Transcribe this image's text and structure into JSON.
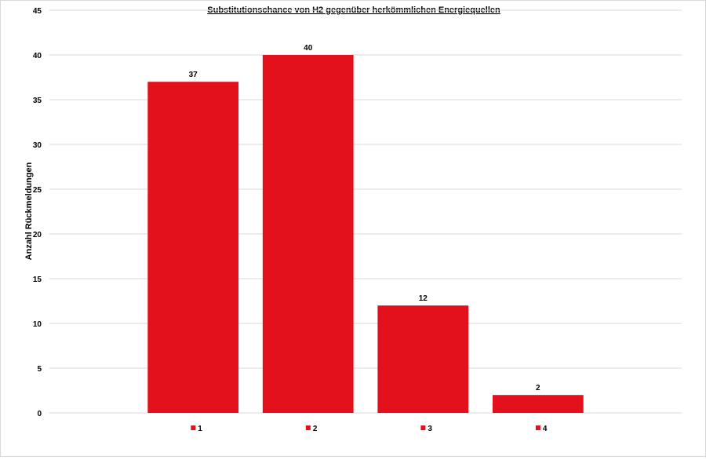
{
  "chart_data": {
    "type": "bar",
    "title": "Substitutionschance von H2 gegenüber herkömmlichen Energiequellen",
    "xlabel": "",
    "ylabel": "Anzahl Rückmeldungen",
    "categories": [
      "1",
      "2",
      "3",
      "4"
    ],
    "values": [
      37,
      40,
      12,
      2
    ],
    "data_labels": [
      "37",
      "40",
      "12",
      "2"
    ],
    "ylim": [
      0,
      45
    ],
    "yticks": [
      "0",
      "5",
      "10",
      "15",
      "20",
      "25",
      "30",
      "35",
      "40",
      "45"
    ],
    "grid": true,
    "legend_position": "bottom",
    "bar_color": "#e3111b"
  }
}
